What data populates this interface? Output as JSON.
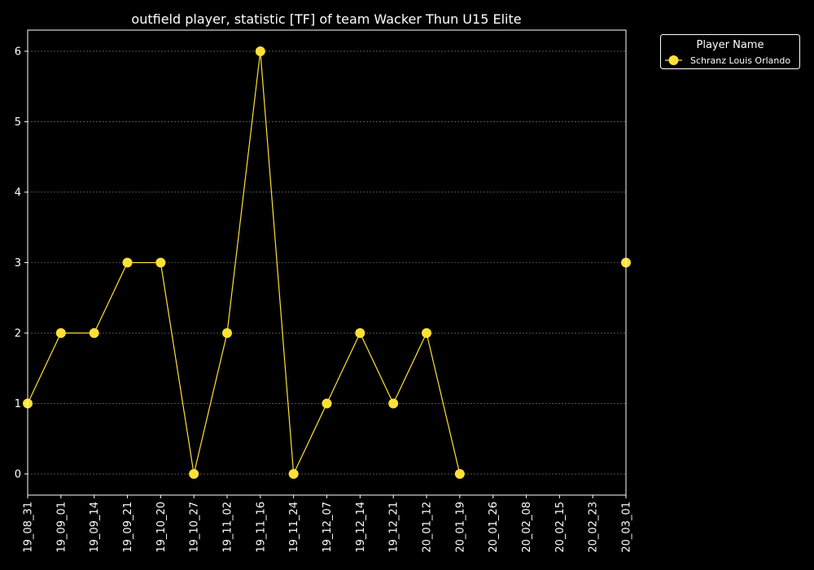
{
  "chart_data": {
    "type": "line",
    "title": "outfield player, statistic [TF] of team Wacker Thun U15 Elite",
    "xlabel": "",
    "ylabel": "",
    "categories": [
      "19_08_31",
      "19_09_01",
      "19_09_14",
      "19_09_21",
      "19_10_20",
      "19_10_27",
      "19_11_02",
      "19_11_16",
      "19_11_24",
      "19_12_07",
      "19_12_14",
      "19_12_21",
      "20_01_12",
      "20_01_19",
      "20_01_26",
      "20_02_08",
      "20_02_15",
      "20_02_23",
      "20_03_01"
    ],
    "y_ticks": [
      0,
      1,
      2,
      3,
      4,
      5,
      6
    ],
    "ylim": [
      -0.3,
      6.3
    ],
    "grid": "horizontal dashed",
    "legend": {
      "title": "Player Name",
      "placement": "outside-top-right"
    },
    "series": [
      {
        "name": "Schranz Louis Orlando",
        "color": "#ffe135",
        "values": [
          1,
          2,
          2,
          3,
          3,
          0,
          2,
          6,
          0,
          1,
          2,
          1,
          2,
          0,
          null,
          null,
          null,
          null,
          3
        ]
      }
    ],
    "colors": {
      "background": "#000000",
      "axes": "#ffffff",
      "grid": "#888888",
      "series": "#ffe135"
    }
  }
}
